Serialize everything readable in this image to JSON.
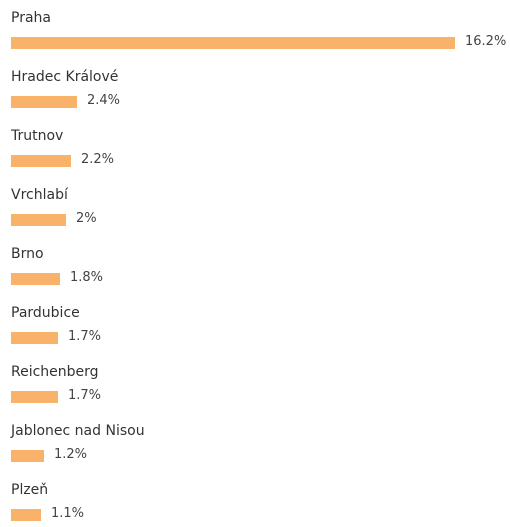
{
  "colors": {
    "bar": "#f8b26a"
  },
  "chart_data": {
    "type": "bar",
    "orientation": "horizontal",
    "categories": [
      "Praha",
      "Hradec Králové",
      "Trutnov",
      "Vrchlabí",
      "Brno",
      "Pardubice",
      "Reichenberg",
      "Jablonec nad Nisou",
      "Plzeň"
    ],
    "values": [
      16.2,
      2.4,
      2.2,
      2,
      1.8,
      1.7,
      1.7,
      1.2,
      1.1
    ],
    "value_labels": [
      "16.2%",
      "2.4%",
      "2.2%",
      "2%",
      "1.8%",
      "1.7%",
      "1.7%",
      "1.2%",
      "1.1%"
    ],
    "grid": false,
    "legend": "none"
  }
}
